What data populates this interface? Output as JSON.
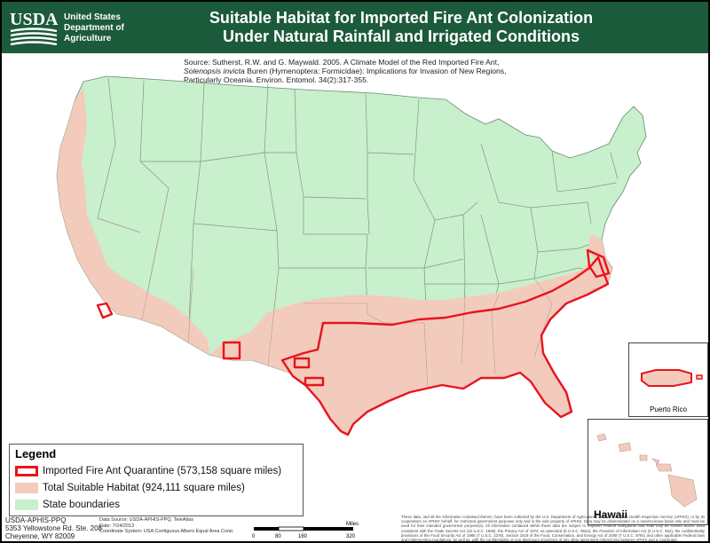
{
  "header": {
    "agency_abbr": "USDA",
    "agency_line1": "United States",
    "agency_line2": "Department of",
    "agency_line3": "Agriculture",
    "title_line1": "Suitable Habitat for Imported Fire Ant Colonization",
    "title_line2": "Under Natural Rainfall and Irrigated Conditions",
    "bg_color": "#1c5a3c"
  },
  "source": {
    "line1": "Source: Sutherst, R.W. and G. Maywald.  2005. A Climate Model of the Red Imported Fire Ant,",
    "species": "Solenopsis invicta",
    "line2_rest": " Buren (Hymenoptera: Formicidae): Implications for Invasion of New Regions,",
    "line3": "Particularly Oceania. Environ. Entomol. 34(2):317-355."
  },
  "legend": {
    "title": "Legend",
    "items": [
      {
        "label": "Imported Fire Ant Quarantine (573,158 square miles)",
        "style": "outline",
        "color": "#e8141c"
      },
      {
        "label": "Total Suitable Habitat (924,111 square miles)",
        "style": "fill",
        "color": "#f3cbbd"
      },
      {
        "label": "State boundaries",
        "style": "fill",
        "color": "#c8f0cc"
      }
    ]
  },
  "insets": {
    "puerto_rico_label": "Puerto Rico",
    "hawaii_label": "Hawaii"
  },
  "colors": {
    "state_fill": "#c8f0cc",
    "habitat_fill": "#f3cbbd",
    "quarantine": "#e8141c",
    "boundary": "#7a9a80",
    "water": "#ffffff"
  },
  "footer": {
    "agency_line1": "USDA-APHIS-PPQ",
    "agency_line2": "5353 Yellowstone Rd. Ste. 208",
    "agency_line3": "Cheyenne, WY  82009",
    "data_source": "Data Source:  USDA-APHIS-PPQ, TeleAtlas",
    "date": "Date:  7/24/2013",
    "coord_system": "Coordinate System: USA Contiguous Albers Equal Area Conic",
    "scale_unit": "Miles",
    "scale_ticks": [
      "0",
      "80",
      "160",
      "320"
    ],
    "disclaimer": "These data, and all the information contained therein, have been collected by the U.S. Department of Agriculture's Animal and Plant Health Inspection Service (APHIS), or by its cooperators on APHIS' behalf, for restricted government purposes only and is the sole property of APHIS. Data may be disseminated on a need-to-know basis only and must be used for their intended government purpose(s). All information contained within these data are subject to required Federal safeguards and shall only be shared and/or used consistent with the Trade Secrets Act (18 U.S.C. 1905), the Privacy Act of 1974, as amended (5 U.S.C. 552a), the Freedom of Information Act (5 U.S.C. 552), the confidentiality provisions of the Food Security Act of 1985 (7 U.S.C. 2276), Section 1619 of the Food, Conservation, and Energy Act of 2008 (7 U.S.C. 8791) and other applicable Federal laws and implementing regulations, as well as, with the confidentiality or non-disclosure provisions of any other agreement entered into between APHIS and a cooperator."
  }
}
